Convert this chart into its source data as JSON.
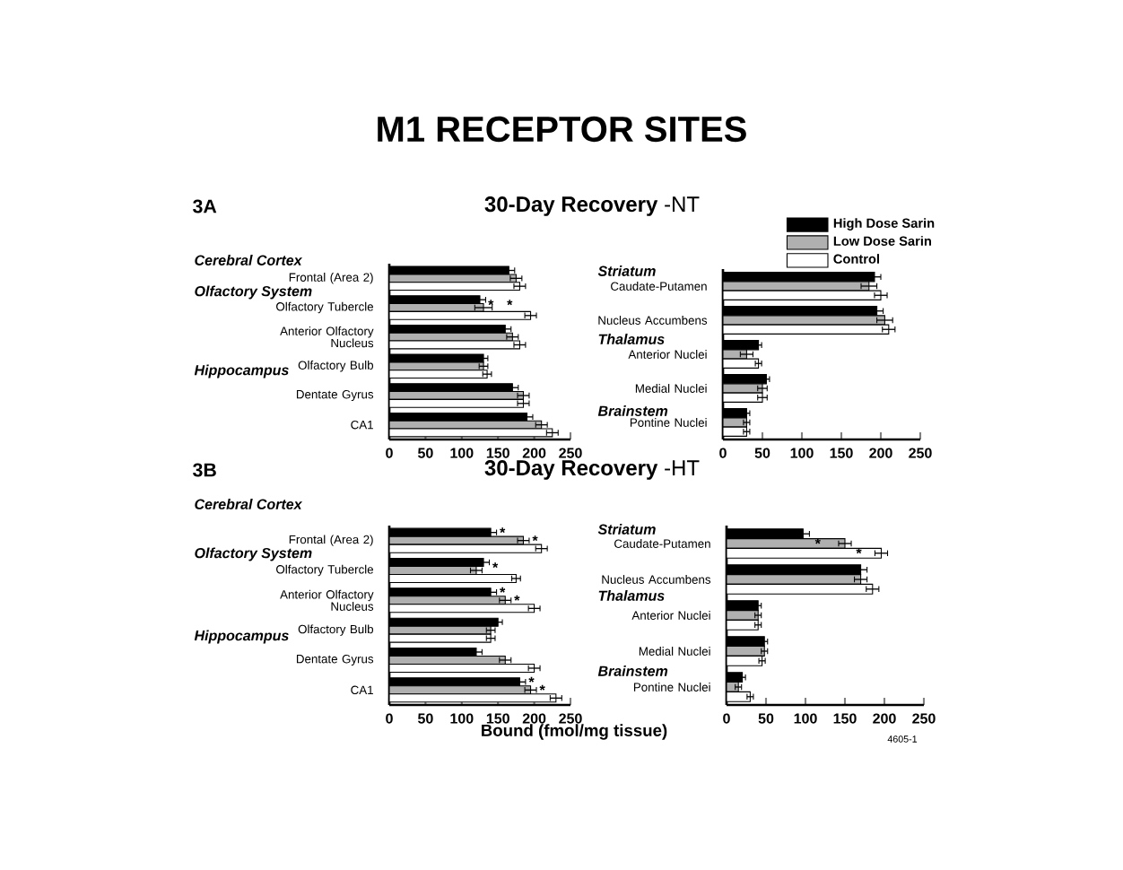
{
  "chart_data": [
    {
      "type": "other",
      "title": "M1 RECEPTOR SITES"
    },
    {
      "type": "other",
      "title": "**30-Day Recovery** -NT"
    },
    {
      "type": "bar",
      "orientation": "horizontal",
      "categories": [
        "Frontal (Area 2)",
        "Olfactory Tubercle",
        "Anterior Olfactory Nucleus",
        "Olfactory Bulb",
        "Dentate Gyrus",
        "CA1"
      ],
      "series": [
        {
          "color": "#000000",
          "values": [
            165,
            125,
            160,
            130,
            170,
            190
          ],
          "errors": [
            8,
            8,
            8,
            6,
            8,
            8
          ]
        },
        {
          "color": "#b0b0b0",
          "values": [
            175,
            130,
            170,
            130,
            185,
            210
          ],
          "errors": [
            8,
            12,
            8,
            6,
            8,
            8
          ]
        },
        {
          "color": "#ffffff",
          "values": [
            180,
            195,
            180,
            135,
            185,
            225
          ],
          "errors": [
            8,
            8,
            8,
            6,
            8,
            8
          ]
        }
      ],
      "xlim": [
        0,
        250
      ],
      "xticks": [
        0,
        50,
        100,
        150,
        200,
        250
      ],
      "annotations": [
        "3A",
        "Cerebral Cortex",
        "Olfactory System",
        "Hippocampus",
        "*",
        "*"
      ]
    },
    {
      "type": "bar",
      "orientation": "horizontal",
      "categories": [
        "Caudate-Putamen",
        "Nucleus Accumbens",
        "Anterior Nuclei",
        "Medial Nuclei",
        "Pontine Nuclei"
      ],
      "series": [
        {
          "name": "High Dose Sarin",
          "color": "#000000",
          "values": [
            192,
            195,
            45,
            55,
            30
          ],
          "errors": [
            8,
            8,
            4,
            4,
            4
          ]
        },
        {
          "name": "Low Dose Sarin",
          "color": "#b0b0b0",
          "values": [
            185,
            205,
            30,
            50,
            30
          ],
          "errors": [
            10,
            10,
            8,
            6,
            4
          ]
        },
        {
          "name": "Control",
          "color": "#ffffff",
          "values": [
            200,
            210,
            45,
            50,
            30
          ],
          "errors": [
            8,
            8,
            4,
            6,
            4
          ]
        }
      ],
      "xlim": [
        0,
        250
      ],
      "xticks": [
        0,
        50,
        100,
        150,
        200,
        250
      ],
      "legend": "top right",
      "annotations": [
        "Striatum",
        "Thalamus",
        "Brainstem"
      ]
    },
    {
      "type": "other",
      "title": "**30-Day Recovery** -HT"
    },
    {
      "type": "bar",
      "orientation": "horizontal",
      "xlabel": "Bound (fmol/mg tissue)",
      "categories": [
        "Frontal (Area 2)",
        "Olfactory Tubercle",
        "Anterior Olfactory Nucleus",
        "Olfactory Bulb",
        "Dentate Gyrus",
        "CA1"
      ],
      "series": [
        {
          "color": "#000000",
          "values": [
            140,
            130,
            140,
            150,
            120,
            180
          ],
          "errors": [
            8,
            8,
            8,
            6,
            8,
            8
          ]
        },
        {
          "color": "#b0b0b0",
          "values": [
            185,
            120,
            160,
            140,
            160,
            195
          ],
          "errors": [
            8,
            8,
            8,
            6,
            8,
            8
          ]
        },
        {
          "color": "#ffffff",
          "values": [
            210,
            175,
            200,
            140,
            200,
            230
          ],
          "errors": [
            8,
            6,
            8,
            6,
            8,
            8
          ]
        }
      ],
      "xlim": [
        0,
        250
      ],
      "xticks": [
        0,
        50,
        100,
        150,
        200,
        250
      ],
      "annotations": [
        "3B",
        "Cerebral Cortex",
        "Olfactory System",
        "Hippocampus",
        "*",
        "*",
        "*",
        "*",
        "*",
        "*",
        "*"
      ]
    },
    {
      "type": "bar",
      "orientation": "horizontal",
      "categories": [
        "Caudate-Putamen",
        "Nucleus Accumbens",
        "Anterior Nuclei",
        "Medial Nuclei",
        "Pontine Nuclei"
      ],
      "series": [
        {
          "color": "#000000",
          "values": [
            97,
            170,
            40,
            48,
            20
          ],
          "errors": [
            8,
            8,
            4,
            4,
            4
          ]
        },
        {
          "color": "#b0b0b0",
          "values": [
            150,
            170,
            40,
            48,
            15
          ],
          "errors": [
            8,
            8,
            4,
            4,
            4
          ]
        },
        {
          "color": "#ffffff",
          "values": [
            196,
            185,
            40,
            45,
            30
          ],
          "errors": [
            8,
            8,
            4,
            4,
            4
          ]
        }
      ],
      "xlim": [
        0,
        250
      ],
      "xticks": [
        0,
        50,
        100,
        150,
        200,
        250
      ],
      "annotations": [
        "Striatum",
        "Thalamus",
        "Brainstem",
        "*",
        "*",
        "4605-1"
      ]
    }
  ]
}
